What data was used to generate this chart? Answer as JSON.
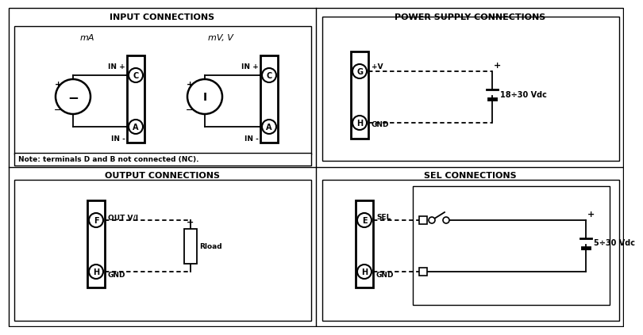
{
  "bg_color": "#ffffff",
  "input_title": "INPUT CONNECTIONS",
  "power_title": "POWER SUPPLY CONNECTIONS",
  "output_title": "OUTPUT CONNECTIONS",
  "sel_title": "SEL CONNECTIONS",
  "note_text": "Note: terminals D and B not connected (NC).",
  "ma_label": "mA",
  "mv_label": "mV, V",
  "in_plus": "IN +",
  "in_minus": "IN -",
  "plus_v": "+V",
  "gnd": "GND",
  "out_vi": "OUT V/I",
  "sel_label": "SEL",
  "rload": "Rload",
  "power_vdc": "18÷30 Vdc",
  "sel_vdc": "5÷30 Vdc"
}
